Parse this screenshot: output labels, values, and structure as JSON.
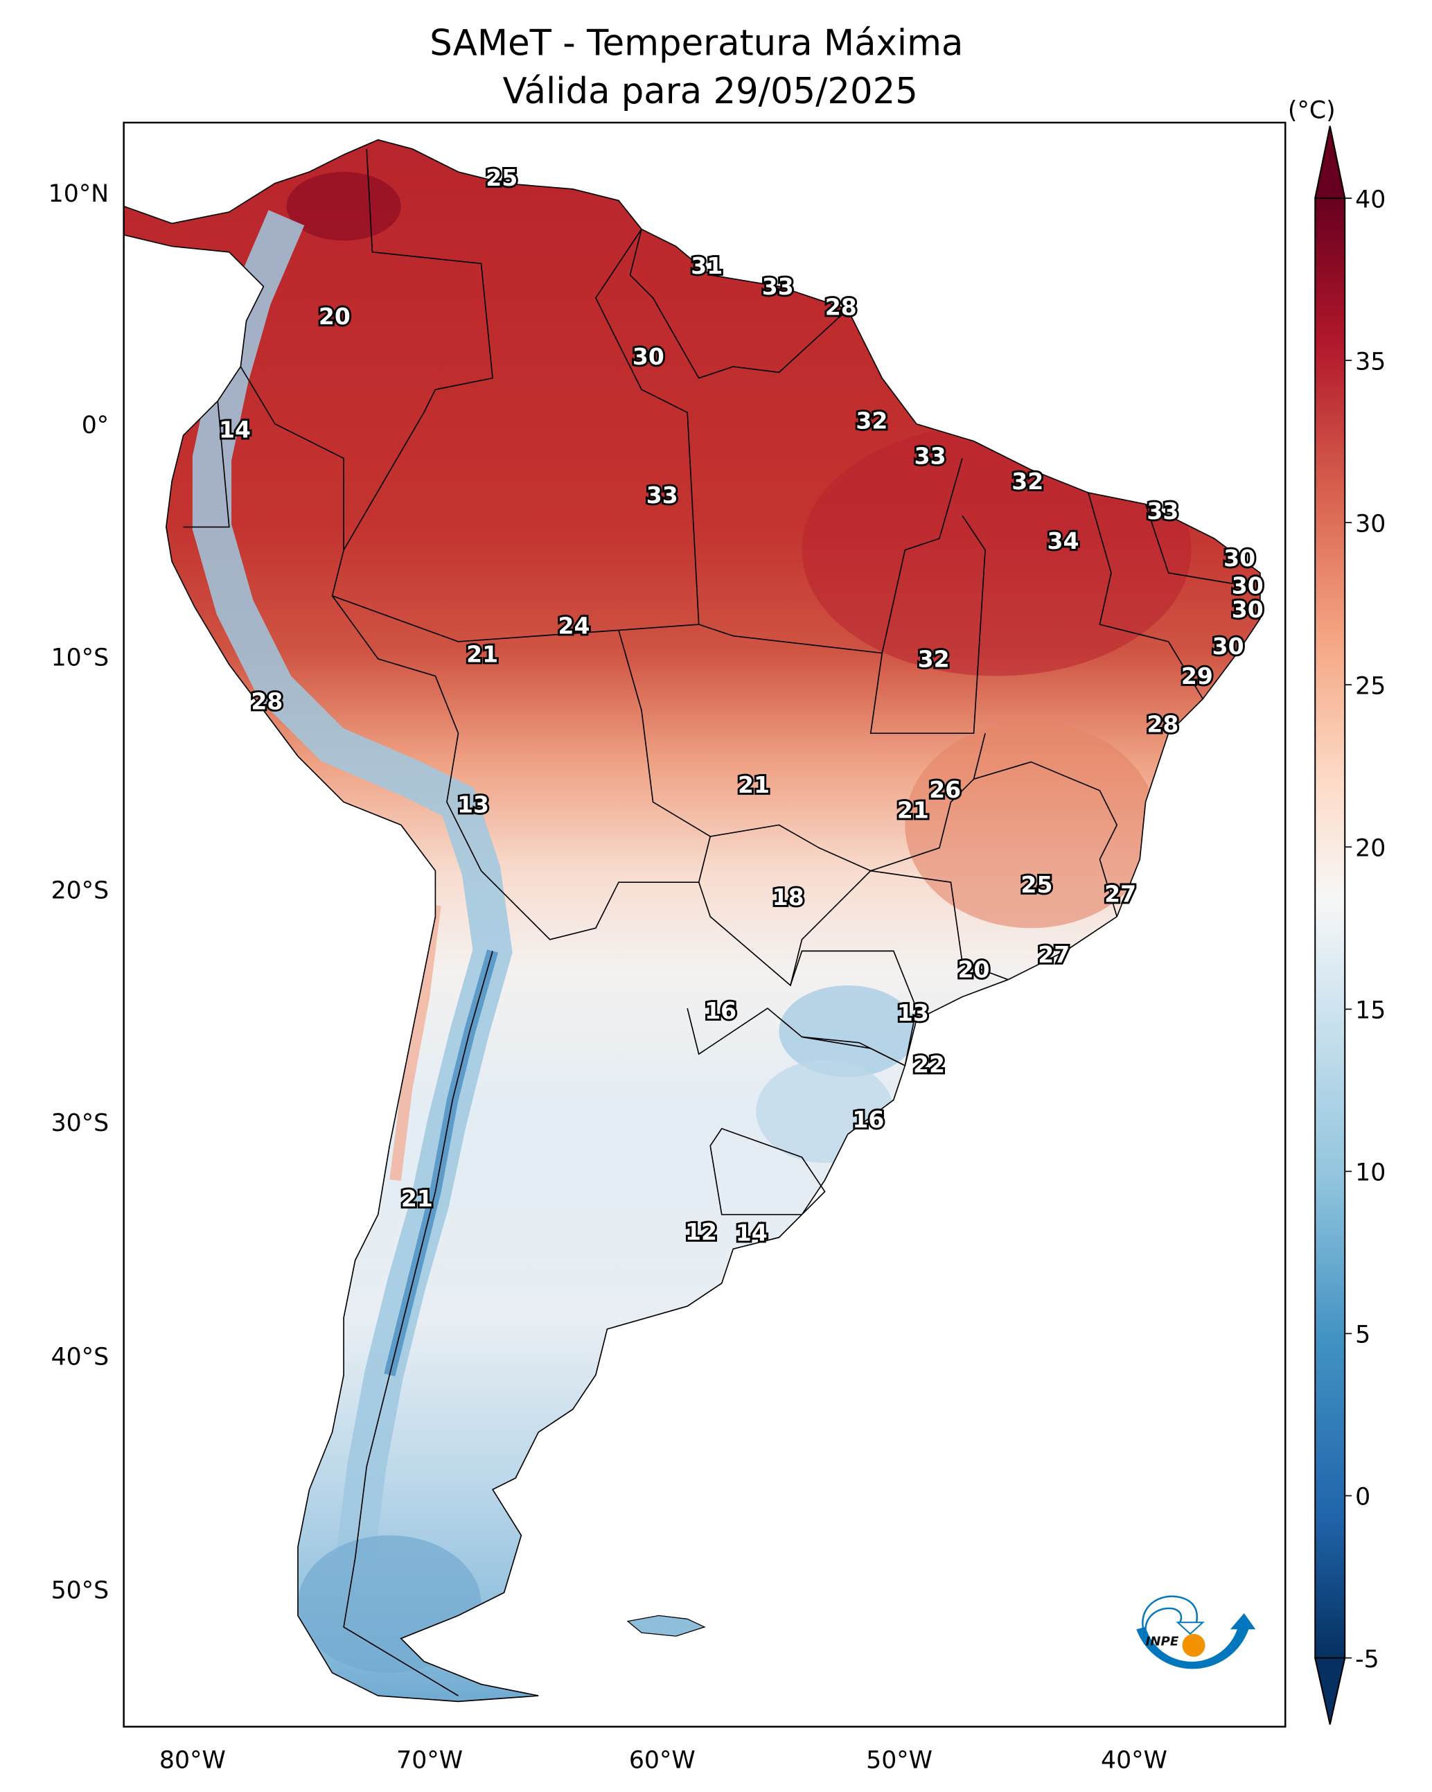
{
  "title": {
    "line1": "SAMeT - Temperatura Máxima",
    "line2": "Válida para 29/05/2025"
  },
  "axes": {
    "lat_ticks": [
      "10°N",
      "0°",
      "10°S",
      "20°S",
      "30°S",
      "40°S",
      "50°S"
    ],
    "lon_ticks": [
      "80°W",
      "70°W",
      "60°W",
      "50°W",
      "40°W"
    ]
  },
  "colorbar": {
    "unit": "(°C)",
    "ticks": [
      "40",
      "35",
      "30",
      "25",
      "20",
      "15",
      "10",
      "5",
      "0",
      "-5"
    ],
    "range": [
      -5,
      40
    ],
    "colormap": "RdBu_r",
    "extend": "both",
    "colors": [
      "#053061",
      "#2166ac",
      "#4393c3",
      "#92c5de",
      "#d1e5f0",
      "#f7f7f7",
      "#fddbc7",
      "#f4a582",
      "#d6604d",
      "#b2182b",
      "#67001f"
    ]
  },
  "station_labels": [
    "25",
    "20",
    "31",
    "33",
    "28",
    "30",
    "14",
    "32",
    "33",
    "32",
    "33",
    "33",
    "34",
    "30",
    "30",
    "30",
    "24",
    "21",
    "30",
    "32",
    "29",
    "28",
    "28",
    "26",
    "21",
    "21",
    "13",
    "25",
    "27",
    "18",
    "27",
    "20",
    "16",
    "13",
    "22",
    "16",
    "21",
    "12",
    "14"
  ],
  "logo": {
    "text": "INPE",
    "colors": [
      "#0277bd",
      "#f39200"
    ]
  }
}
